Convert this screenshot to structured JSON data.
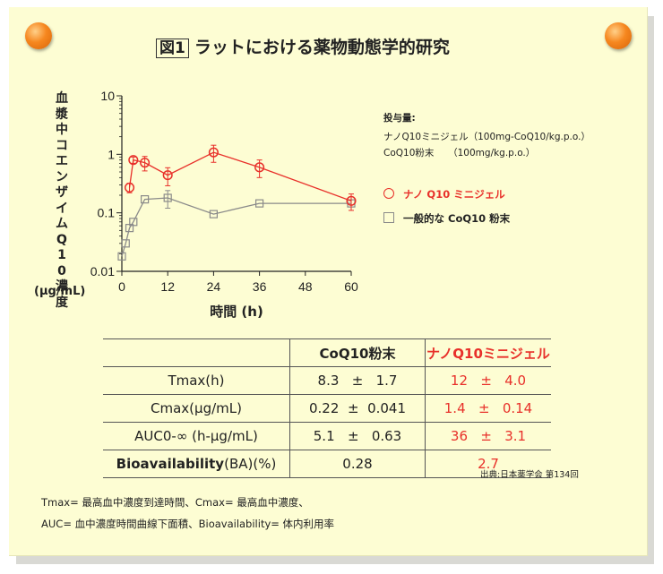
{
  "title": {
    "figure_label": "図1",
    "text": "ラットにおける薬物動態学的研究"
  },
  "y_axis": {
    "label": "血漿中コエンザイムQ10濃度",
    "unit": "(µg/mL)"
  },
  "dose": {
    "heading": "投与量:",
    "lines": [
      "ナノQ10ミニジェル（100mg-CoQ10/kg.p.o.）",
      "CoQ10粉末　　（100mg/kg.p.o.）"
    ]
  },
  "legend": {
    "nano": "ナノ Q10 ミニジェル",
    "general": "一般的な CoQ10 粉末"
  },
  "colors": {
    "nano": "#e8302a",
    "general": "#8a8a8a",
    "paper": "#fdfdd3",
    "pin": "#f6871f"
  },
  "chart_data": {
    "type": "line",
    "xlabel": "時間 (h)",
    "ylabel": "血漿中コエンザイムQ10濃度 (µg/mL)",
    "xlim": [
      0,
      60
    ],
    "ylim": [
      0.01,
      10
    ],
    "yscale": "log",
    "x_ticks": [
      "0",
      "12",
      "24",
      "36",
      "48",
      "60"
    ],
    "y_ticks": [
      "0.01",
      "0.1",
      "1",
      "10"
    ],
    "grid": false,
    "series": [
      {
        "name": "ナノ Q10 ミニジェル",
        "marker": "circle",
        "x": [
          2,
          3,
          6,
          12,
          24,
          36,
          60
        ],
        "y": [
          0.27,
          0.8,
          0.72,
          0.44,
          1.08,
          0.6,
          0.16
        ],
        "err": [
          0.05,
          0.1,
          0.2,
          0.15,
          0.35,
          0.2,
          0.05
        ]
      },
      {
        "name": "一般的な CoQ10 粉末",
        "marker": "square",
        "x": [
          0,
          1,
          2,
          3,
          6,
          12,
          24,
          36,
          60
        ],
        "y": [
          0.018,
          0.03,
          0.055,
          0.07,
          0.17,
          0.18,
          0.095,
          0.145,
          0.145
        ],
        "err": [
          0,
          0,
          0,
          0,
          0,
          0.06,
          0,
          0,
          0
        ]
      }
    ]
  },
  "table": {
    "headers": [
      "CoQ10粉末",
      "ナノQ10ミニジェル"
    ],
    "rows": [
      {
        "label": "Tmax(h)",
        "coq": [
          "8.3",
          "±",
          "1.7"
        ],
        "nano": [
          "12",
          "±",
          "4.0"
        ]
      },
      {
        "label": "Cmax(μg/mL)",
        "coq": [
          "0.22",
          "±",
          "0.041"
        ],
        "nano": [
          "1.4",
          "±",
          "0.14"
        ]
      },
      {
        "label": "AUC0-∞ (h-μg/mL)",
        "coq": [
          "5.1",
          "±",
          "0.63"
        ],
        "nano": [
          "36",
          "±",
          "3.1"
        ]
      }
    ],
    "ba": {
      "label_bold": "Bioavailability",
      "label_rest": "(BA)(%)",
      "coq": "0.28",
      "nano": "2.7"
    }
  },
  "source": "出典:日本薬学会 第134回",
  "footnotes": [
    "Tmax= 最高血中濃度到達時間、Cmax= 最高血中濃度、",
    "AUC= 血中濃度時間曲線下面積、Bioavailability= 体内利用率"
  ]
}
